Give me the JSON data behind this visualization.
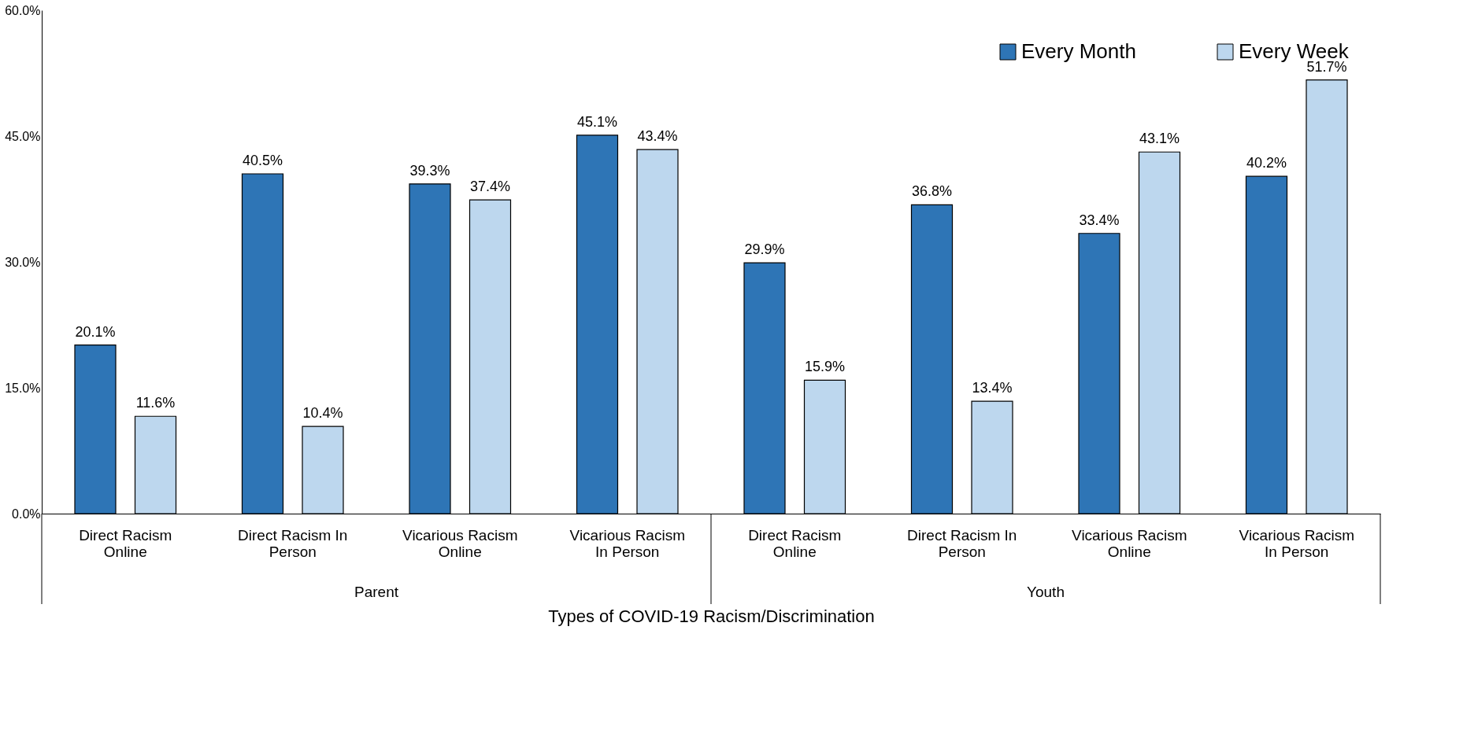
{
  "chart_data": {
    "type": "bar",
    "xlabel": "Types of COVID-19 Racism/Discrimination",
    "categories": [
      "Direct Racism Online",
      "Direct Racism In Person",
      "Vicarious Racism Online",
      "Vicarious Racism In Person",
      "Direct Racism Online",
      "Direct Racism In Person",
      "Vicarious Racism Online",
      "Vicarious Racism In Person"
    ],
    "series": [
      {
        "name": "Every Month",
        "color": "#2e75b6",
        "values": [
          20.1,
          40.5,
          39.3,
          45.1,
          29.9,
          36.8,
          33.4,
          40.2
        ],
        "value_labels": [
          "20.1%",
          "40.5%",
          "39.3%",
          "45.1%",
          "29.9%",
          "36.8%",
          "33.4%",
          "40.2%"
        ]
      },
      {
        "name": "Every Week",
        "color": "#bdd7ee",
        "values": [
          11.6,
          10.4,
          37.4,
          43.4,
          15.9,
          13.4,
          43.1,
          51.7
        ],
        "value_labels": [
          "11.6%",
          "10.4%",
          "37.4%",
          "43.4%",
          "15.9%",
          "13.4%",
          "43.1%",
          "51.7%"
        ]
      }
    ],
    "ylim": [
      0,
      60
    ],
    "yticks": [
      {
        "value": 0,
        "label": "0.0%"
      },
      {
        "value": 15,
        "label": "15.0%"
      },
      {
        "value": 30,
        "label": "30.0%"
      },
      {
        "value": 45,
        "label": "45.0%"
      },
      {
        "value": 60,
        "label": "60.0%"
      }
    ],
    "grid": false,
    "legend": "top right",
    "annotations": [
      "Parent",
      "Youth"
    ]
  }
}
